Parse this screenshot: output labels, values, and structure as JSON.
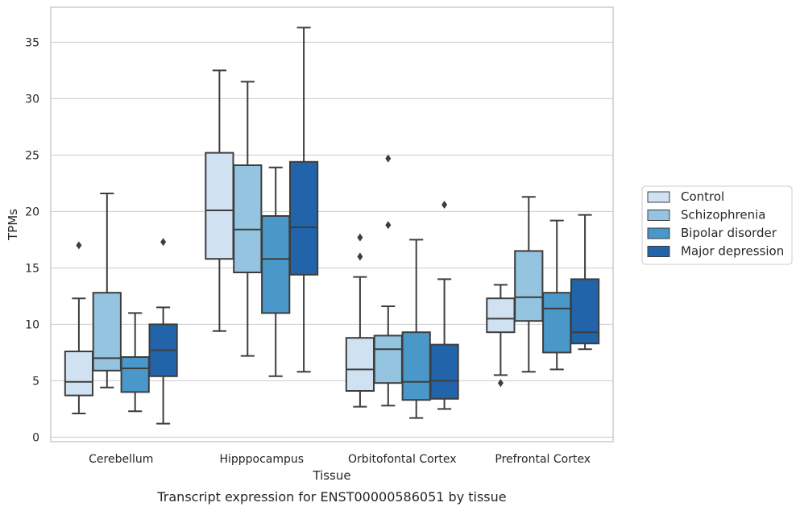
{
  "chart_data": {
    "type": "box",
    "title": "",
    "caption": "Transcript expression for ENST00000586051 by tissue",
    "xlabel": "Tissue",
    "ylabel": "TPMs",
    "ylim": [
      -0.4,
      38.1
    ],
    "yticks": [
      0,
      5,
      10,
      15,
      20,
      25,
      30,
      35
    ],
    "grid": true,
    "legend_position": "right, outside plot",
    "categories": [
      "Cerebellum",
      "Hipppocampus",
      "Orbitofontal Cortex",
      "Prefrontal Cortex"
    ],
    "series": [
      {
        "name": "Control",
        "color": "#d0e1f2",
        "boxes": [
          {
            "whisker_low": 2.1,
            "q1": 3.7,
            "median": 4.9,
            "q3": 7.6,
            "whisker_high": 12.3,
            "outliers": [
              17.0
            ]
          },
          {
            "whisker_low": 9.4,
            "q1": 15.8,
            "median": 20.1,
            "q3": 25.2,
            "whisker_high": 32.5,
            "outliers": []
          },
          {
            "whisker_low": 2.7,
            "q1": 4.1,
            "median": 6.0,
            "q3": 8.8,
            "whisker_high": 14.2,
            "outliers": [
              16.0,
              17.7
            ]
          },
          {
            "whisker_low": 5.5,
            "q1": 9.3,
            "median": 10.5,
            "q3": 12.3,
            "whisker_high": 13.5,
            "outliers": [
              4.8
            ]
          }
        ]
      },
      {
        "name": "Schizophrenia",
        "color": "#94c4df",
        "boxes": [
          {
            "whisker_low": 4.4,
            "q1": 5.9,
            "median": 7.0,
            "q3": 12.8,
            "whisker_high": 21.6,
            "outliers": []
          },
          {
            "whisker_low": 7.2,
            "q1": 14.6,
            "median": 18.4,
            "q3": 24.1,
            "whisker_high": 31.5,
            "outliers": []
          },
          {
            "whisker_low": 2.8,
            "q1": 4.8,
            "median": 7.8,
            "q3": 9.0,
            "whisker_high": 11.6,
            "outliers": [
              18.8,
              24.7
            ]
          },
          {
            "whisker_low": 5.8,
            "q1": 10.3,
            "median": 12.4,
            "q3": 16.5,
            "whisker_high": 21.3,
            "outliers": []
          }
        ]
      },
      {
        "name": "Bipolar disorder",
        "color": "#4a98c9",
        "boxes": [
          {
            "whisker_low": 2.3,
            "q1": 4.0,
            "median": 6.1,
            "q3": 7.1,
            "whisker_high": 11.0,
            "outliers": []
          },
          {
            "whisker_low": 5.4,
            "q1": 11.0,
            "median": 15.8,
            "q3": 19.6,
            "whisker_high": 23.9,
            "outliers": []
          },
          {
            "whisker_low": 1.7,
            "q1": 3.3,
            "median": 4.9,
            "q3": 9.3,
            "whisker_high": 17.5,
            "outliers": []
          },
          {
            "whisker_low": 6.0,
            "q1": 7.5,
            "median": 11.4,
            "q3": 12.8,
            "whisker_high": 19.2,
            "outliers": []
          }
        ]
      },
      {
        "name": "Major depression",
        "color": "#2264aa",
        "boxes": [
          {
            "whisker_low": 1.2,
            "q1": 5.4,
            "median": 7.7,
            "q3": 10.0,
            "whisker_high": 11.5,
            "outliers": [
              17.3
            ]
          },
          {
            "whisker_low": 5.8,
            "q1": 14.4,
            "median": 18.6,
            "q3": 24.4,
            "whisker_high": 36.3,
            "outliers": []
          },
          {
            "whisker_low": 2.5,
            "q1": 3.4,
            "median": 5.0,
            "q3": 8.2,
            "whisker_high": 14.0,
            "outliers": [
              20.6
            ]
          },
          {
            "whisker_low": 7.8,
            "q1": 8.3,
            "median": 9.3,
            "q3": 14.0,
            "whisker_high": 19.7,
            "outliers": []
          }
        ]
      }
    ]
  },
  "colors": {
    "box_edge": "#3d3d3d",
    "grid": "#cccccc",
    "frame": "#cccccc"
  }
}
